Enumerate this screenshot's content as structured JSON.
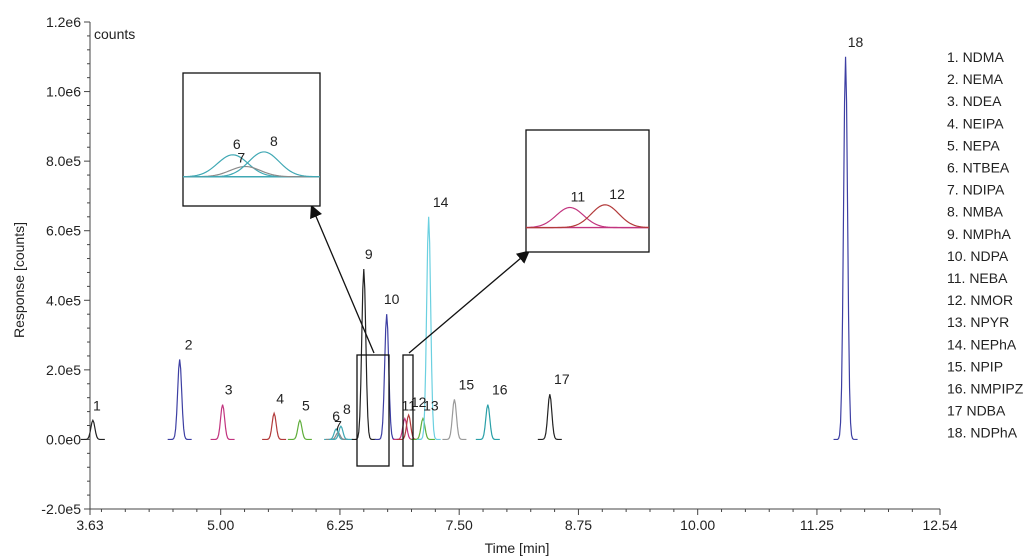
{
  "chart_data": {
    "type": "line",
    "units_label": "counts",
    "xlabel": "Time [min]",
    "ylabel": "Response [counts]",
    "xlim": [
      3.63,
      12.54
    ],
    "ylim": [
      -200000,
      1200000
    ],
    "x_ticks": [
      {
        "value": 3.63,
        "label": "3.63"
      },
      {
        "value": 5.0,
        "label": "5.00"
      },
      {
        "value": 6.25,
        "label": "6.25"
      },
      {
        "value": 7.5,
        "label": "7.50"
      },
      {
        "value": 8.75,
        "label": "8.75"
      },
      {
        "value": 10.0,
        "label": "10.00"
      },
      {
        "value": 11.25,
        "label": "11.25"
      },
      {
        "value": 12.54,
        "label": "12.54"
      }
    ],
    "y_ticks": [
      {
        "value": -200000,
        "label": "-2.0e5"
      },
      {
        "value": 0,
        "label": "0.0e0"
      },
      {
        "value": 200000,
        "label": "2.0e5"
      },
      {
        "value": 400000,
        "label": "4.0e5"
      },
      {
        "value": 600000,
        "label": "6.0e5"
      },
      {
        "value": 800000,
        "label": "8.0e5"
      },
      {
        "value": 1000000,
        "label": "1.0e6"
      },
      {
        "value": 1200000,
        "label": "1.2e6"
      }
    ],
    "peaks": [
      {
        "label": "1",
        "time": 3.66,
        "height": 55000,
        "color": "#222222",
        "label_color": "#e8643c"
      },
      {
        "label": "2",
        "time": 4.57,
        "height": 230000,
        "color": "#3d3fa3"
      },
      {
        "label": "3",
        "time": 5.02,
        "height": 100000,
        "color": "#c2347f"
      },
      {
        "label": "4",
        "time": 5.56,
        "height": 75000,
        "color": "#b23a3a"
      },
      {
        "label": "5",
        "time": 5.83,
        "height": 55000,
        "color": "#5fae3a"
      },
      {
        "label": "6",
        "time": 6.21,
        "height": 30000,
        "color": "#40a8b4"
      },
      {
        "label": "7",
        "time": 6.23,
        "height": 20000,
        "color": "#8a8a8a"
      },
      {
        "label": "8",
        "time": 6.26,
        "height": 38000,
        "color": "#40a8b4"
      },
      {
        "label": "9",
        "time": 6.5,
        "height": 490000,
        "color": "#222222"
      },
      {
        "label": "10",
        "time": 6.74,
        "height": 360000,
        "color": "#3d3fa3"
      },
      {
        "label": "11",
        "time": 6.93,
        "height": 60000,
        "color": "#c2347f"
      },
      {
        "label": "12",
        "time": 6.97,
        "height": 70000,
        "color": "#b23a3a"
      },
      {
        "label": "13",
        "time": 7.12,
        "height": 60000,
        "color": "#5fae3a"
      },
      {
        "label": "14",
        "time": 7.18,
        "height": 640000,
        "color": "#6bd0e0"
      },
      {
        "label": "15",
        "time": 7.45,
        "height": 115000,
        "color": "#9a9a9a"
      },
      {
        "label": "16",
        "time": 7.8,
        "height": 100000,
        "color": "#2aa0a8"
      },
      {
        "label": "17",
        "time": 8.45,
        "height": 130000,
        "color": "#222222"
      },
      {
        "label": "18",
        "time": 11.55,
        "height": 1100000,
        "color": "#3d3fa3"
      }
    ],
    "legend_placement": "right",
    "legend": [
      "1. NDMA",
      "2. NEMA",
      "3. NDEA",
      "4. NEIPA",
      "5. NEPA",
      "6. NTBEA",
      "7. NDIPA",
      "8. NMBA",
      "9. NMPhA",
      "10. NDPA",
      "11. NEBA",
      "12. NMOR",
      "13. NPYR",
      "14. NEPhA",
      "15. NPIP",
      "16. NMPIPZ",
      "17 NDBA",
      "18. NDPhA"
    ],
    "insets": [
      {
        "zoom_range": [
          6.13,
          6.35
        ],
        "peaks": [
          {
            "label": "6",
            "time": 6.21,
            "height": 0.75,
            "color": "#40a8b4"
          },
          {
            "label": "7",
            "time": 6.23,
            "height": 0.35,
            "color": "#8a8a8a"
          },
          {
            "label": "8",
            "time": 6.26,
            "height": 0.85,
            "color": "#40a8b4"
          }
        ]
      },
      {
        "zoom_range": [
          6.88,
          7.02
        ],
        "peaks": [
          {
            "label": "11",
            "time": 6.93,
            "height": 0.75,
            "color": "#c2347f"
          },
          {
            "label": "12",
            "time": 6.97,
            "height": 0.85,
            "color": "#b23a3a"
          }
        ]
      }
    ],
    "grid": false
  }
}
